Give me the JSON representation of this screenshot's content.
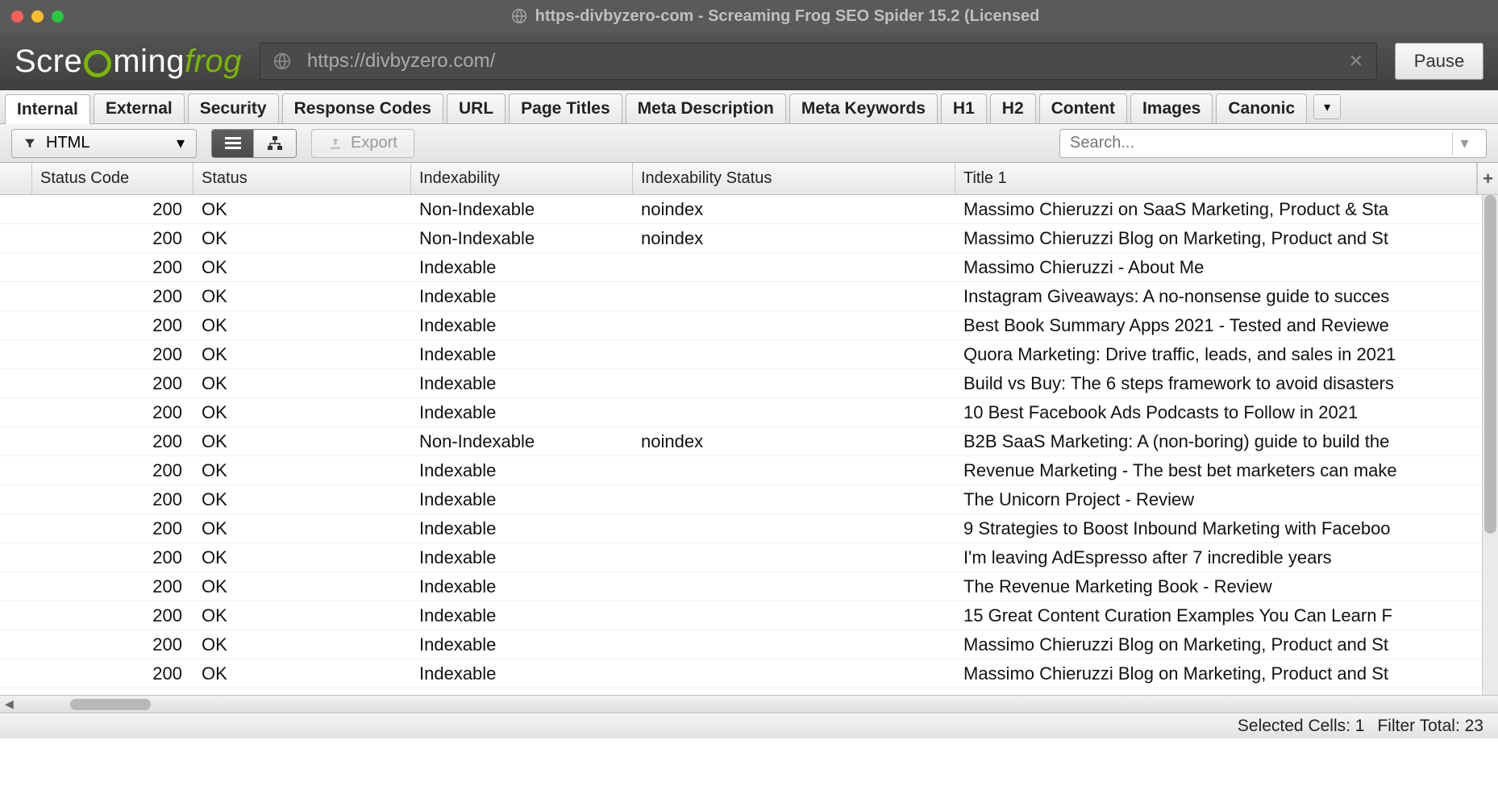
{
  "window": {
    "title": "https-divbyzero-com - Screaming Frog SEO Spider 15.2 (Licensed"
  },
  "logo": {
    "part1": "Scre",
    "part2": "ming",
    "part3": "frog"
  },
  "url_input": "https://divbyzero.com/",
  "pause_label": "Pause",
  "tabs": [
    "Internal",
    "External",
    "Security",
    "Response Codes",
    "URL",
    "Page Titles",
    "Meta Description",
    "Meta Keywords",
    "H1",
    "H2",
    "Content",
    "Images",
    "Canonic"
  ],
  "active_tab": 0,
  "filter_dropdown": "HTML",
  "export_label": "Export",
  "search_placeholder": "Search...",
  "columns": [
    "Status Code",
    "Status",
    "Indexability",
    "Indexability Status",
    "Title 1"
  ],
  "rows": [
    {
      "code": "200",
      "status": "OK",
      "index": "Non-Indexable",
      "istat": "noindex",
      "title": "Massimo Chieruzzi on SaaS Marketing, Product & Sta"
    },
    {
      "code": "200",
      "status": "OK",
      "index": "Non-Indexable",
      "istat": "noindex",
      "title": "Massimo Chieruzzi Blog on Marketing, Product and St"
    },
    {
      "code": "200",
      "status": "OK",
      "index": "Indexable",
      "istat": "",
      "title": "Massimo Chieruzzi - About Me"
    },
    {
      "code": "200",
      "status": "OK",
      "index": "Indexable",
      "istat": "",
      "title": "Instagram Giveaways: A no-nonsense guide to succes"
    },
    {
      "code": "200",
      "status": "OK",
      "index": "Indexable",
      "istat": "",
      "title": "Best Book Summary Apps 2021 - Tested and Reviewe"
    },
    {
      "code": "200",
      "status": "OK",
      "index": "Indexable",
      "istat": "",
      "title": "Quora Marketing: Drive traffic, leads, and sales in 2021"
    },
    {
      "code": "200",
      "status": "OK",
      "index": "Indexable",
      "istat": "",
      "title": "Build vs Buy: The 6 steps framework to avoid disasters"
    },
    {
      "code": "200",
      "status": "OK",
      "index": "Indexable",
      "istat": "",
      "title": "10 Best Facebook Ads Podcasts to Follow in 2021"
    },
    {
      "code": "200",
      "status": "OK",
      "index": "Non-Indexable",
      "istat": "noindex",
      "title": "B2B SaaS Marketing: A (non-boring) guide to build the"
    },
    {
      "code": "200",
      "status": "OK",
      "index": "Indexable",
      "istat": "",
      "title": "Revenue Marketing - The best bet marketers can make"
    },
    {
      "code": "200",
      "status": "OK",
      "index": "Indexable",
      "istat": "",
      "title": "The Unicorn Project - Review"
    },
    {
      "code": "200",
      "status": "OK",
      "index": "Indexable",
      "istat": "",
      "title": "9 Strategies to Boost Inbound Marketing with Faceboo"
    },
    {
      "code": "200",
      "status": "OK",
      "index": "Indexable",
      "istat": "",
      "title": "I'm leaving AdEspresso after 7 incredible years"
    },
    {
      "code": "200",
      "status": "OK",
      "index": "Indexable",
      "istat": "",
      "title": "The Revenue Marketing Book - Review"
    },
    {
      "code": "200",
      "status": "OK",
      "index": "Indexable",
      "istat": "",
      "title": "15 Great Content Curation Examples You Can Learn F"
    },
    {
      "code": "200",
      "status": "OK",
      "index": "Indexable",
      "istat": "",
      "title": "Massimo Chieruzzi Blog on Marketing, Product and St"
    },
    {
      "code": "200",
      "status": "OK",
      "index": "Indexable",
      "istat": "",
      "title": "Massimo Chieruzzi Blog on Marketing, Product and St"
    }
  ],
  "status": {
    "selected": "Selected Cells: 1",
    "filter": "Filter Total:  23"
  }
}
